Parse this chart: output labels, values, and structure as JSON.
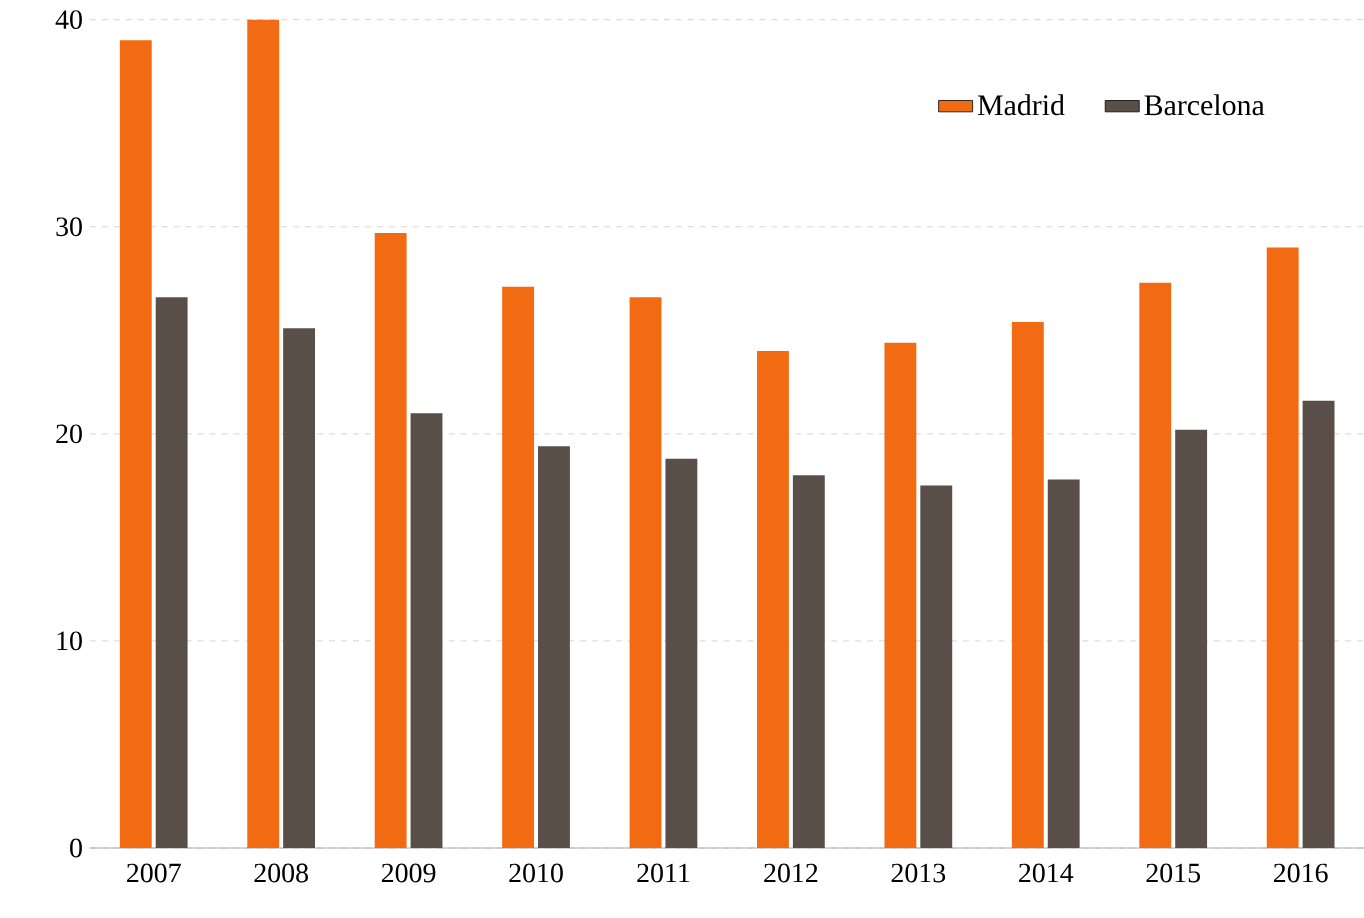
{
  "chart_data": {
    "type": "bar",
    "categories": [
      "2007",
      "2008",
      "2009",
      "2010",
      "2011",
      "2012",
      "2013",
      "2014",
      "2015",
      "2016"
    ],
    "series": [
      {
        "name": "Madrid",
        "color": "#f26b12",
        "values": [
          39.0,
          40.0,
          29.7,
          27.1,
          26.6,
          24.0,
          24.4,
          25.4,
          27.3,
          29.0
        ]
      },
      {
        "name": "Barcelona",
        "color": "#5a4f48",
        "values": [
          26.6,
          25.1,
          21.0,
          19.4,
          18.8,
          18.0,
          17.5,
          17.8,
          20.2,
          21.6
        ]
      }
    ],
    "ylim": [
      0,
      40
    ],
    "yticks": [
      0,
      10,
      20,
      30,
      40
    ],
    "grid": "y",
    "legend": "top right"
  }
}
